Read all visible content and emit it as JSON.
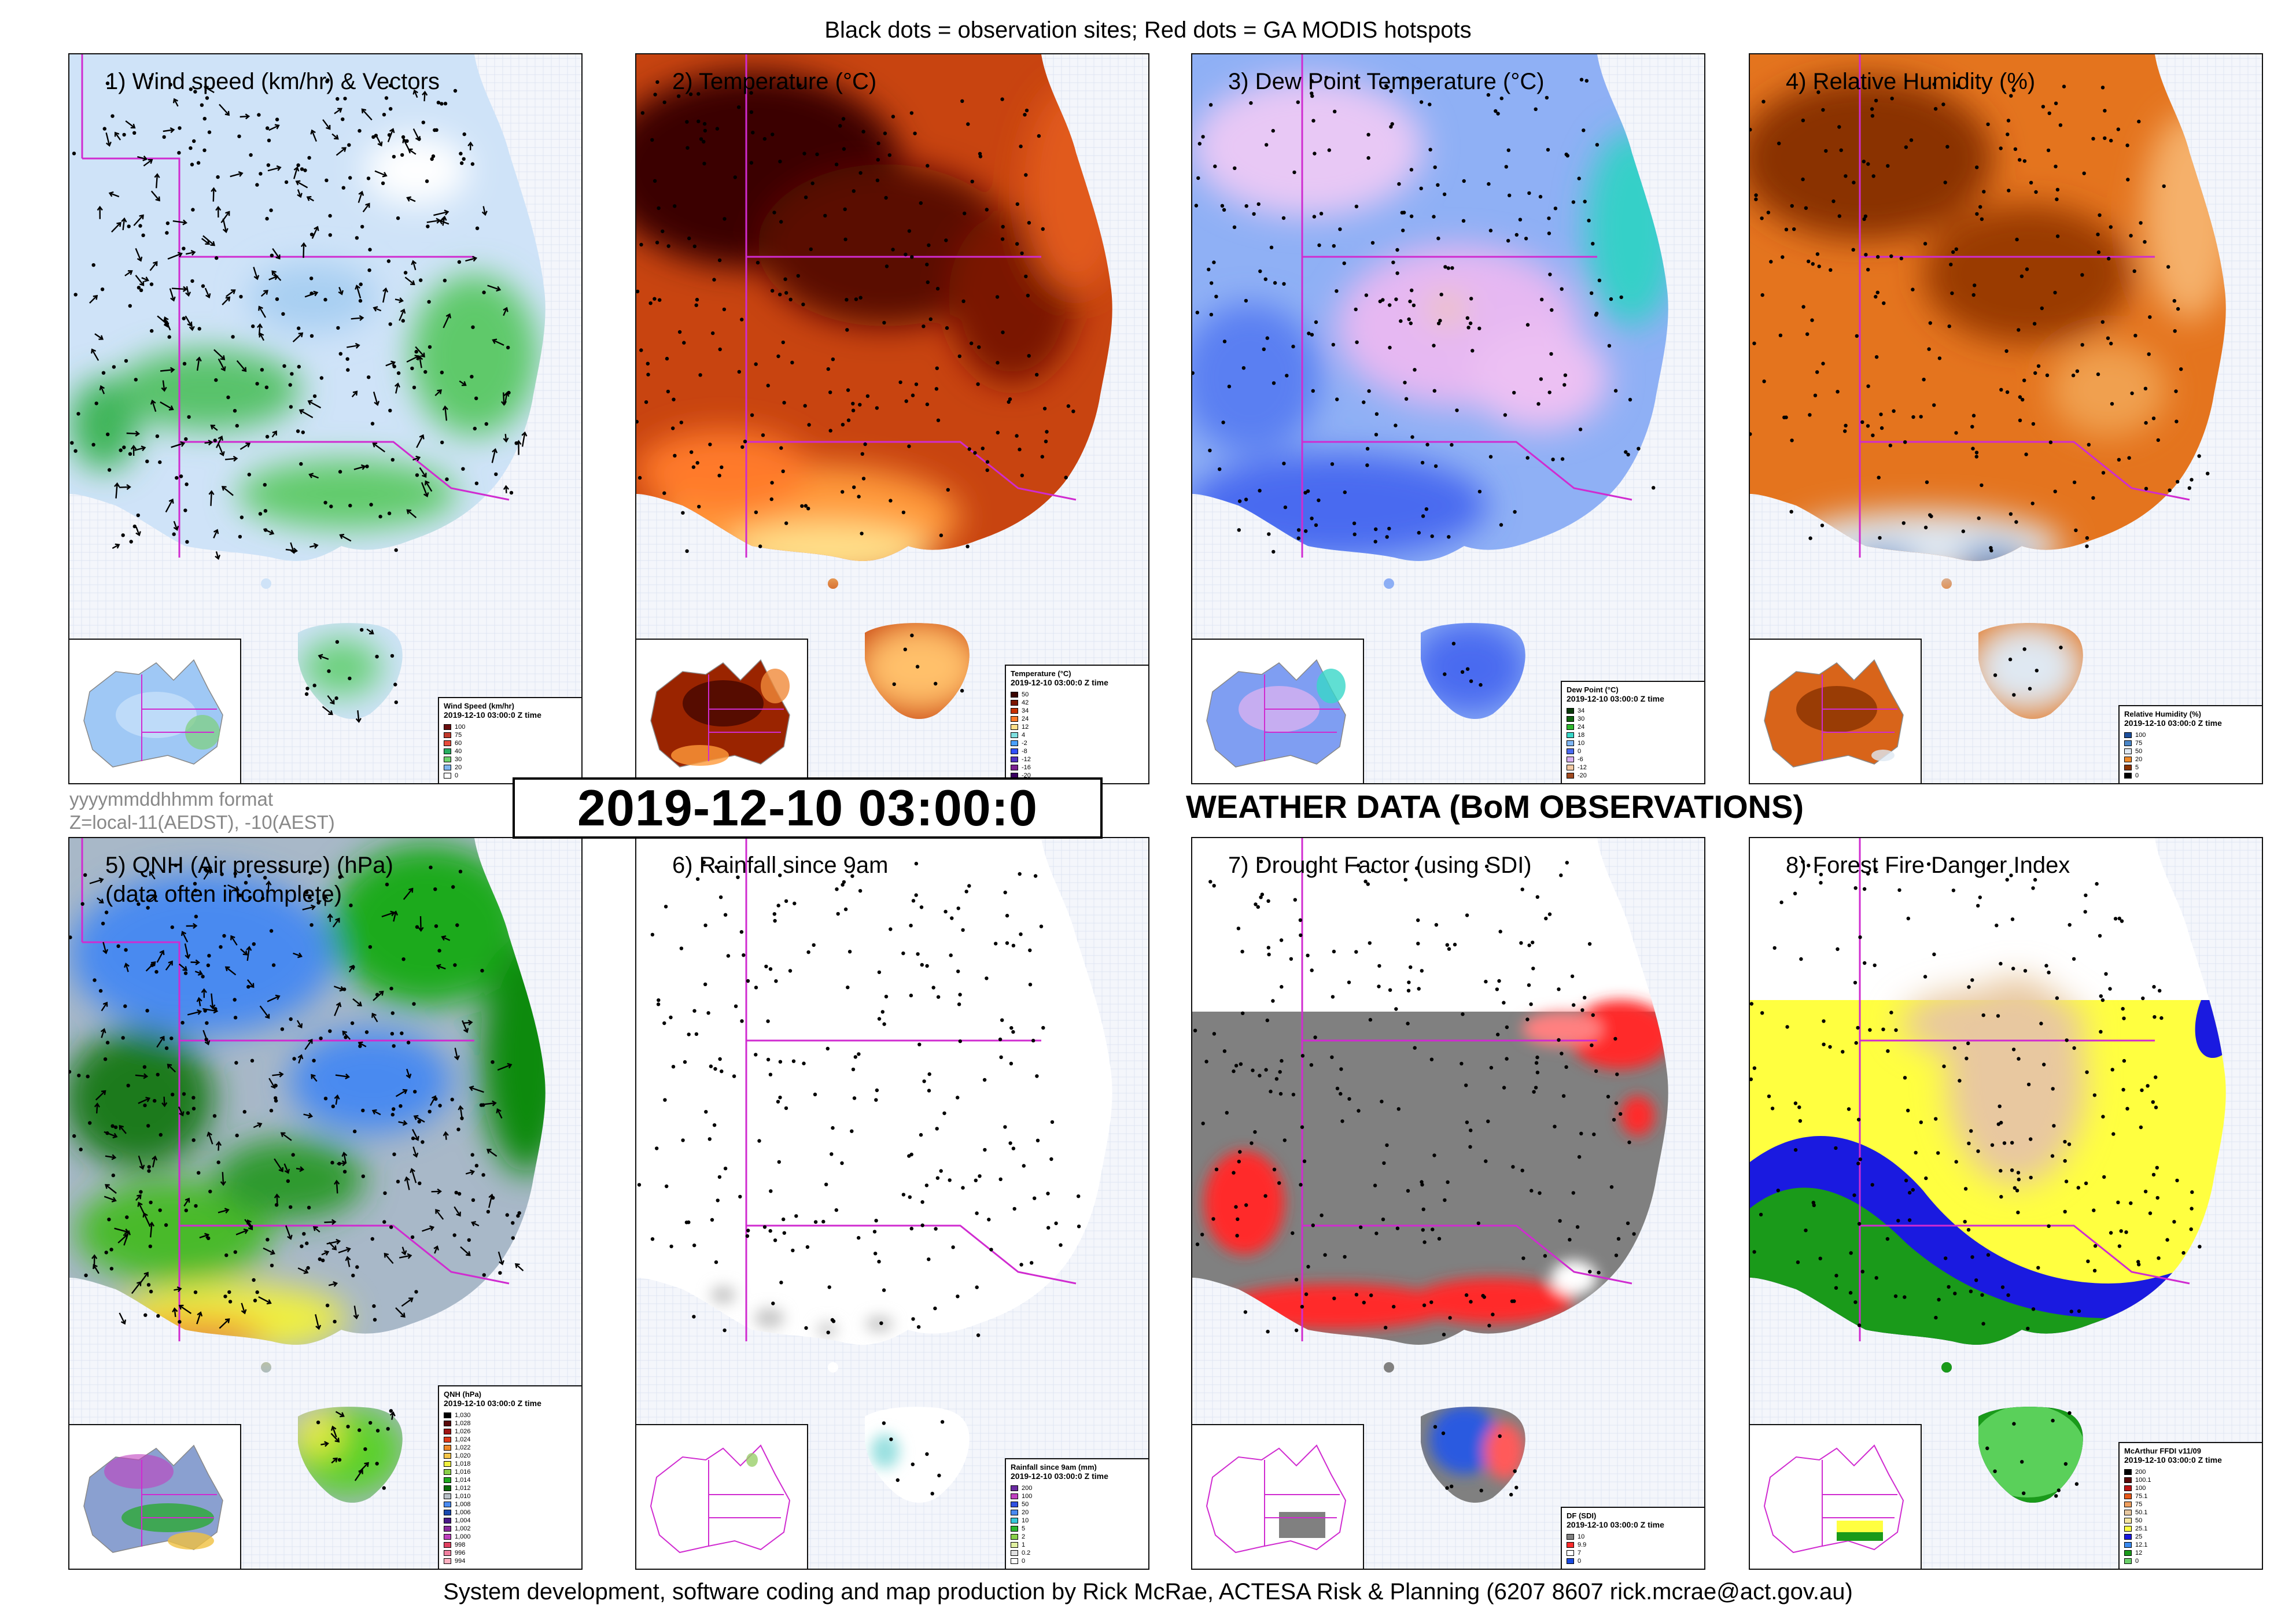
{
  "header": {
    "caption": "Black dots = observation sites; Red dots = GA MODIS hotspots"
  },
  "footer": {
    "caption": "System development, software coding and map production by Rick McRae, ACTESA Risk & Planning (6207 8607 rick.mcrae@act.gov.au)"
  },
  "timestamp": {
    "text": "2019-12-10 03:00:0"
  },
  "format_note": {
    "line1": "yyyymmddhhmm format",
    "line2": "Z=local-11(AEDST), -10(AEST)"
  },
  "section_title": "WEATHER DATA (BoM OBSERVATIONS)",
  "panels": [
    {
      "title": "1) Wind speed (km/hr) & Vectors",
      "legend": {
        "title": "Wind Speed (km/hr)",
        "subtitle": "2019-12-10 03:00:0 Z time",
        "entries": [
          {
            "label": "100",
            "color": "#6a0d0d"
          },
          {
            "label": "75",
            "color": "#c0392b"
          },
          {
            "label": "60",
            "color": "#e74c3c"
          },
          {
            "label": "40",
            "color": "#27ae60"
          },
          {
            "label": "30",
            "color": "#6fd36f"
          },
          {
            "label": "20",
            "color": "#7fb5ee"
          },
          {
            "label": "0",
            "color": "#ffffff"
          }
        ]
      }
    },
    {
      "title": "2) Temperature (°C)",
      "legend": {
        "title": "Temperature (°C)",
        "subtitle": "2019-12-10 03:00:0 Z time",
        "entries": [
          {
            "label": "50",
            "color": "#3a0500"
          },
          {
            "label": "42",
            "color": "#7a1500"
          },
          {
            "label": "34",
            "color": "#c83000"
          },
          {
            "label": "24",
            "color": "#ff7a2a"
          },
          {
            "label": "12",
            "color": "#ffe08a"
          },
          {
            "label": "4",
            "color": "#7fe0e0"
          },
          {
            "label": "-2",
            "color": "#4aa0ff"
          },
          {
            "label": "-8",
            "color": "#3050ff"
          },
          {
            "label": "-12",
            "color": "#5030c0"
          },
          {
            "label": "-16",
            "color": "#7a2090"
          },
          {
            "label": "-20",
            "color": "#3a0060"
          }
        ]
      }
    },
    {
      "title": "3) Dew Point Temperature (°C)",
      "legend": {
        "title": "Dew Point (°C)",
        "subtitle": "2019-12-10 03:00:0 Z time",
        "entries": [
          {
            "label": "34",
            "color": "#0a3a0a"
          },
          {
            "label": "30",
            "color": "#116611"
          },
          {
            "label": "24",
            "color": "#2eb82e"
          },
          {
            "label": "18",
            "color": "#38d7c8"
          },
          {
            "label": "10",
            "color": "#7fb7f5"
          },
          {
            "label": "0",
            "color": "#4a6af0"
          },
          {
            "label": "-6",
            "color": "#d9b0f0"
          },
          {
            "label": "-12",
            "color": "#f2c9a3"
          },
          {
            "label": "-20",
            "color": "#a04a20"
          }
        ]
      }
    },
    {
      "title": "4) Relative Humidity (%)",
      "legend": {
        "title": "Relative Humidity (%)",
        "subtitle": "2019-12-10 03:00:0 Z time",
        "entries": [
          {
            "label": "100",
            "color": "#1c4f9c"
          },
          {
            "label": "75",
            "color": "#4a86c8"
          },
          {
            "label": "50",
            "color": "#dfe8f2"
          },
          {
            "label": "20",
            "color": "#f08a2a"
          },
          {
            "label": "5",
            "color": "#8a3200"
          },
          {
            "label": "0",
            "color": "#000000"
          }
        ]
      }
    },
    {
      "title": "5) QNH (Air pressure) (hPa)\n(data often incomplete)",
      "legend": {
        "title": "QNH (hPa)",
        "subtitle": "2019-12-10 03:00:0 Z time",
        "entries": [
          {
            "label": "1,030",
            "color": "#000000"
          },
          {
            "label": "1,028",
            "color": "#5a0a0a"
          },
          {
            "label": "1,026",
            "color": "#a01414"
          },
          {
            "label": "1,024",
            "color": "#e03a1a"
          },
          {
            "label": "1,022",
            "color": "#f08a2a"
          },
          {
            "label": "1,020",
            "color": "#f6c64a"
          },
          {
            "label": "1,018",
            "color": "#f0f040"
          },
          {
            "label": "1,016",
            "color": "#8ad04a"
          },
          {
            "label": "1,014",
            "color": "#1faa1f"
          },
          {
            "label": "1,012",
            "color": "#0a6a0a"
          },
          {
            "label": "1,010",
            "color": "#b8c0c8"
          },
          {
            "label": "1,008",
            "color": "#4a8af0"
          },
          {
            "label": "1,006",
            "color": "#1a4ab0"
          },
          {
            "label": "1,004",
            "color": "#4a1a8a"
          },
          {
            "label": "1,002",
            "color": "#8a2aa0"
          },
          {
            "label": "1,000",
            "color": "#c040c0"
          },
          {
            "label": "998",
            "color": "#e04060"
          },
          {
            "label": "996",
            "color": "#f080a0"
          },
          {
            "label": "994",
            "color": "#ffb0c0"
          }
        ]
      }
    },
    {
      "title": "6) Rainfall since 9am",
      "legend": {
        "title": "Rainfall since 9am (mm)",
        "subtitle": "2019-12-10 03:00:0 Z time",
        "entries": [
          {
            "label": "200",
            "color": "#6a2aa0"
          },
          {
            "label": "100",
            "color": "#c040c0"
          },
          {
            "label": "50",
            "color": "#3050e0"
          },
          {
            "label": "20",
            "color": "#4a8af0"
          },
          {
            "label": "10",
            "color": "#38c8d8"
          },
          {
            "label": "5",
            "color": "#2eb82e"
          },
          {
            "label": "2",
            "color": "#8ad04a"
          },
          {
            "label": "1",
            "color": "#e0f0a0"
          },
          {
            "label": "0.2",
            "color": "#e0e0e0"
          },
          {
            "label": "0",
            "color": "#ffffff"
          }
        ]
      }
    },
    {
      "title": "7) Drought Factor (using SDI)",
      "legend": {
        "title": "DF (SDI)",
        "subtitle": "2019-12-10 03:00:0 Z time",
        "entries": [
          {
            "label": "10",
            "color": "#808080"
          },
          {
            "label": "9.9",
            "color": "#ff2a2a"
          },
          {
            "label": "7",
            "color": "#ffffff"
          },
          {
            "label": "0",
            "color": "#1a4ae0"
          }
        ]
      }
    },
    {
      "title": "8) Forest Fire Danger Index",
      "legend": {
        "title": "McArthur FFDI v11/09",
        "subtitle": "2019-12-10 03:00:0 Z time",
        "entries": [
          {
            "label": "200",
            "color": "#000000"
          },
          {
            "label": "100.1",
            "color": "#5a0a0a"
          },
          {
            "label": "100",
            "color": "#c01414"
          },
          {
            "label": "75.1",
            "color": "#e85a1a"
          },
          {
            "label": "75",
            "color": "#f0a060"
          },
          {
            "label": "50.1",
            "color": "#e8c8a0"
          },
          {
            "label": "50",
            "color": "#f6e6a0"
          },
          {
            "label": "25.1",
            "color": "#ffff40"
          },
          {
            "label": "25",
            "color": "#1a1ae0"
          },
          {
            "label": "12.1",
            "color": "#3a8af0"
          },
          {
            "label": "12",
            "color": "#1a9a1a"
          },
          {
            "label": "0",
            "color": "#6ad06a"
          }
        ]
      }
    }
  ]
}
